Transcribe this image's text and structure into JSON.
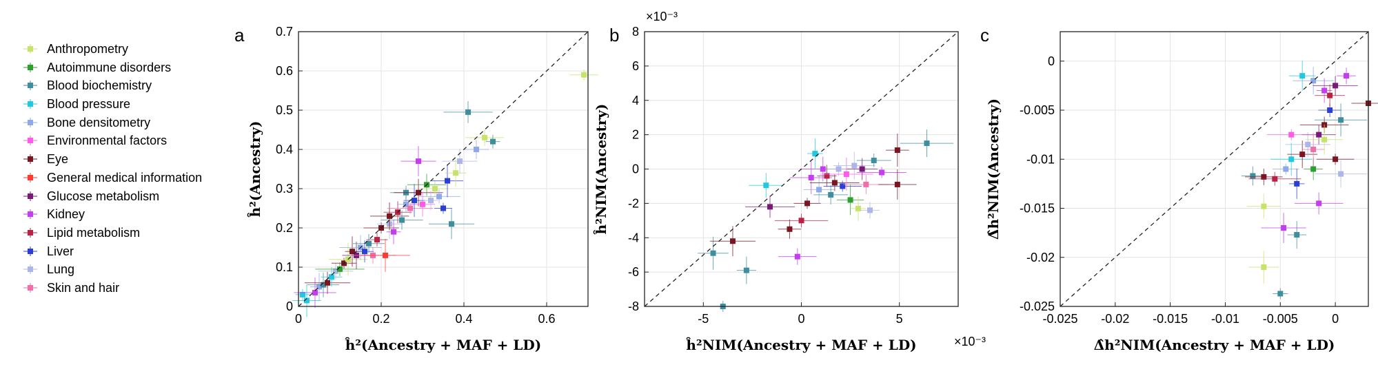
{
  "panel_letters": [
    "a",
    "b",
    "c"
  ],
  "legend": {
    "items": [
      {
        "label": "Anthropometry",
        "color": "#c7e36a"
      },
      {
        "label": "Autoimmune disorders",
        "color": "#2ca02c"
      },
      {
        "label": "Blood biochemistry",
        "color": "#3e8e9e"
      },
      {
        "label": "Blood pressure",
        "color": "#22c8e0"
      },
      {
        "label": "Bone densitometry",
        "color": "#8fa8ea"
      },
      {
        "label": "Environmental factors",
        "color": "#ff5be8"
      },
      {
        "label": "Eye",
        "color": "#7a1522"
      },
      {
        "label": "General medical information",
        "color": "#ff3b2f"
      },
      {
        "label": "Glucose metabolism",
        "color": "#7a1a78"
      },
      {
        "label": "Kidney",
        "color": "#c43df0"
      },
      {
        "label": "Lipid metabolism",
        "color": "#b82244"
      },
      {
        "label": "Liver",
        "color": "#2b3fd6"
      },
      {
        "label": "Lung",
        "color": "#aeb6e8"
      },
      {
        "label": "Skin and hair",
        "color": "#ef6fa8"
      }
    ]
  },
  "chart_data": [
    {
      "type": "scatter",
      "panel": "a",
      "xlabel": "ĥ²(Ancestry + MAF + LD)",
      "ylabel": "ĥ²(Ancestry)",
      "xlim": [
        0,
        0.7
      ],
      "ylim": [
        0,
        0.7
      ],
      "xticks": [
        "0",
        "0.2",
        "0.4",
        "0.6"
      ],
      "yticks": [
        "0",
        "0.1",
        "0.2",
        "0.3",
        "0.4",
        "0.5",
        "0.6",
        "0.7"
      ],
      "grid": true,
      "diagonal": true,
      "points": [
        {
          "x": 0.01,
          "y": 0.03,
          "c": 3
        },
        {
          "x": 0.02,
          "y": 0.015,
          "c": 3
        },
        {
          "x": 0.04,
          "y": 0.035,
          "c": 9
        },
        {
          "x": 0.05,
          "y": 0.05,
          "c": 4
        },
        {
          "x": 0.06,
          "y": 0.055,
          "c": 2
        },
        {
          "x": 0.07,
          "y": 0.06,
          "c": 6
        },
        {
          "x": 0.08,
          "y": 0.075,
          "c": 3
        },
        {
          "x": 0.09,
          "y": 0.09,
          "c": 12
        },
        {
          "x": 0.1,
          "y": 0.095,
          "c": 1
        },
        {
          "x": 0.11,
          "y": 0.11,
          "c": 6
        },
        {
          "x": 0.12,
          "y": 0.12,
          "c": 0
        },
        {
          "x": 0.13,
          "y": 0.14,
          "c": 6
        },
        {
          "x": 0.14,
          "y": 0.13,
          "c": 8
        },
        {
          "x": 0.15,
          "y": 0.15,
          "c": 4
        },
        {
          "x": 0.16,
          "y": 0.14,
          "c": 11
        },
        {
          "x": 0.17,
          "y": 0.16,
          "c": 2
        },
        {
          "x": 0.18,
          "y": 0.13,
          "c": 13
        },
        {
          "x": 0.19,
          "y": 0.17,
          "c": 10
        },
        {
          "x": 0.2,
          "y": 0.2,
          "c": 6
        },
        {
          "x": 0.21,
          "y": 0.13,
          "c": 7
        },
        {
          "x": 0.22,
          "y": 0.21,
          "c": 12
        },
        {
          "x": 0.22,
          "y": 0.23,
          "c": 6
        },
        {
          "x": 0.23,
          "y": 0.19,
          "c": 9
        },
        {
          "x": 0.24,
          "y": 0.24,
          "c": 10
        },
        {
          "x": 0.25,
          "y": 0.22,
          "c": 2
        },
        {
          "x": 0.26,
          "y": 0.26,
          "c": 4
        },
        {
          "x": 0.26,
          "y": 0.29,
          "c": 2
        },
        {
          "x": 0.27,
          "y": 0.25,
          "c": 13
        },
        {
          "x": 0.28,
          "y": 0.27,
          "c": 11
        },
        {
          "x": 0.29,
          "y": 0.37,
          "c": 9
        },
        {
          "x": 0.29,
          "y": 0.29,
          "c": 6
        },
        {
          "x": 0.3,
          "y": 0.26,
          "c": 5
        },
        {
          "x": 0.31,
          "y": 0.31,
          "c": 1
        },
        {
          "x": 0.32,
          "y": 0.27,
          "c": 12
        },
        {
          "x": 0.33,
          "y": 0.3,
          "c": 0
        },
        {
          "x": 0.34,
          "y": 0.28,
          "c": 4
        },
        {
          "x": 0.35,
          "y": 0.25,
          "c": 11
        },
        {
          "x": 0.36,
          "y": 0.32,
          "c": 11
        },
        {
          "x": 0.37,
          "y": 0.21,
          "c": 2
        },
        {
          "x": 0.38,
          "y": 0.34,
          "c": 0
        },
        {
          "x": 0.39,
          "y": 0.37,
          "c": 12
        },
        {
          "x": 0.41,
          "y": 0.495,
          "c": 2
        },
        {
          "x": 0.43,
          "y": 0.4,
          "c": 4
        },
        {
          "x": 0.45,
          "y": 0.43,
          "c": 0
        },
        {
          "x": 0.47,
          "y": 0.42,
          "c": 2
        },
        {
          "x": 0.69,
          "y": 0.59,
          "c": 0
        }
      ]
    },
    {
      "type": "scatter",
      "panel": "b",
      "xlabel": "ĥ²NIM(Ancestry + MAF + LD)",
      "ylabel": "ĥ²NIM(Ancestry)",
      "x_scale_label": "×10⁻³",
      "y_scale_label": "×10⁻³",
      "xlim": [
        -8,
        8
      ],
      "ylim": [
        -8,
        8
      ],
      "xticks": [
        "-5",
        "0",
        "5"
      ],
      "yticks": [
        "-8",
        "-6",
        "-4",
        "-2",
        "0",
        "2",
        "4",
        "6",
        "8"
      ],
      "grid": true,
      "diagonal": true,
      "points": [
        {
          "x": -4.0,
          "y": -8.0,
          "c": 2
        },
        {
          "x": -4.5,
          "y": -4.9,
          "c": 2
        },
        {
          "x": -3.5,
          "y": -4.2,
          "c": 6
        },
        {
          "x": -2.8,
          "y": -5.9,
          "c": 2
        },
        {
          "x": -1.8,
          "y": -0.95,
          "c": 3
        },
        {
          "x": -1.6,
          "y": -2.2,
          "c": 8
        },
        {
          "x": -0.6,
          "y": -3.5,
          "c": 6
        },
        {
          "x": -0.2,
          "y": -5.1,
          "c": 9
        },
        {
          "x": 0.0,
          "y": -3.0,
          "c": 10
        },
        {
          "x": 0.3,
          "y": -2.0,
          "c": 6
        },
        {
          "x": 0.5,
          "y": -0.5,
          "c": 9
        },
        {
          "x": 0.7,
          "y": 0.9,
          "c": 3
        },
        {
          "x": 0.9,
          "y": -1.2,
          "c": 4
        },
        {
          "x": 1.1,
          "y": 0.0,
          "c": 9
        },
        {
          "x": 1.3,
          "y": -0.4,
          "c": 10
        },
        {
          "x": 1.5,
          "y": -1.5,
          "c": 2
        },
        {
          "x": 1.7,
          "y": -0.8,
          "c": 6
        },
        {
          "x": 1.9,
          "y": 0.0,
          "c": 12
        },
        {
          "x": 2.1,
          "y": -1.0,
          "c": 11
        },
        {
          "x": 2.3,
          "y": -0.3,
          "c": 5
        },
        {
          "x": 2.5,
          "y": -1.8,
          "c": 1
        },
        {
          "x": 2.7,
          "y": 0.2,
          "c": 12
        },
        {
          "x": 2.9,
          "y": -2.3,
          "c": 0
        },
        {
          "x": 3.1,
          "y": 0.0,
          "c": 8
        },
        {
          "x": 3.3,
          "y": -0.9,
          "c": 13
        },
        {
          "x": 3.5,
          "y": -2.4,
          "c": 12
        },
        {
          "x": 3.7,
          "y": 0.5,
          "c": 2
        },
        {
          "x": 4.1,
          "y": -0.2,
          "c": 9
        },
        {
          "x": 4.9,
          "y": 1.1,
          "c": 6
        },
        {
          "x": 4.9,
          "y": -0.9,
          "c": 6
        },
        {
          "x": 6.4,
          "y": 1.5,
          "c": 2
        }
      ]
    },
    {
      "type": "scatter",
      "panel": "c",
      "xlabel": "Δ̂h²NIM(Ancestry + MAF + LD)",
      "ylabel": "Δ̂h²NIM(Ancestry)",
      "xlim": [
        -0.025,
        0.003
      ],
      "ylim": [
        -0.025,
        0.003
      ],
      "xticks": [
        "-0.025",
        "-0.02",
        "-0.015",
        "-0.01",
        "-0.005",
        "0"
      ],
      "yticks": [
        "-0.025",
        "-0.02",
        "-0.015",
        "-0.01",
        "-0.005",
        "0"
      ],
      "grid": true,
      "diagonal": true,
      "points": [
        {
          "x": -0.005,
          "y": -0.0237,
          "c": 2
        },
        {
          "x": -0.0065,
          "y": -0.021,
          "c": 0
        },
        {
          "x": -0.0047,
          "y": -0.017,
          "c": 9
        },
        {
          "x": -0.0035,
          "y": -0.0177,
          "c": 2
        },
        {
          "x": -0.0065,
          "y": -0.0148,
          "c": 0
        },
        {
          "x": -0.0015,
          "y": -0.0145,
          "c": 9
        },
        {
          "x": -0.0075,
          "y": -0.0117,
          "c": 2
        },
        {
          "x": -0.0065,
          "y": -0.0118,
          "c": 6
        },
        {
          "x": -0.0055,
          "y": -0.012,
          "c": 10
        },
        {
          "x": -0.0045,
          "y": -0.011,
          "c": 4
        },
        {
          "x": -0.004,
          "y": -0.01,
          "c": 3
        },
        {
          "x": -0.0035,
          "y": -0.0125,
          "c": 11
        },
        {
          "x": -0.003,
          "y": -0.0095,
          "c": 6
        },
        {
          "x": -0.0025,
          "y": -0.0085,
          "c": 12
        },
        {
          "x": -0.002,
          "y": -0.011,
          "c": 1
        },
        {
          "x": -0.0015,
          "y": -0.0075,
          "c": 8
        },
        {
          "x": -0.001,
          "y": -0.0065,
          "c": 6
        },
        {
          "x": -0.0005,
          "y": -0.005,
          "c": 11
        },
        {
          "x": 0.0,
          "y": -0.01,
          "c": 6
        },
        {
          "x": 0.0005,
          "y": -0.006,
          "c": 2
        },
        {
          "x": -0.003,
          "y": -0.0015,
          "c": 3
        },
        {
          "x": -0.002,
          "y": -0.002,
          "c": 4
        },
        {
          "x": -0.001,
          "y": -0.003,
          "c": 9
        },
        {
          "x": -0.0005,
          "y": -0.0035,
          "c": 10
        },
        {
          "x": 0.0,
          "y": -0.0025,
          "c": 8
        },
        {
          "x": 0.001,
          "y": -0.0015,
          "c": 9
        },
        {
          "x": 0.003,
          "y": -0.0043,
          "c": 6
        },
        {
          "x": -0.004,
          "y": -0.0075,
          "c": 5
        },
        {
          "x": -0.002,
          "y": -0.009,
          "c": 13
        },
        {
          "x": -0.001,
          "y": -0.008,
          "c": 0
        },
        {
          "x": 0.0005,
          "y": -0.0115,
          "c": 12
        }
      ]
    }
  ]
}
